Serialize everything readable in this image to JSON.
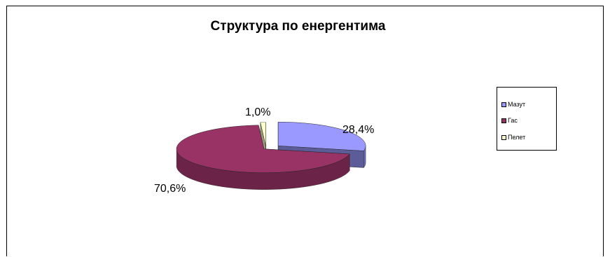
{
  "chart_data": {
    "type": "pie",
    "title": "Структура по енергентима",
    "categories": [
      "Мазут",
      "Гас",
      "Пелет"
    ],
    "values": [
      28.4,
      70.6,
      1.0
    ],
    "data_labels": [
      "28,4%",
      "70,6%",
      "1,0%"
    ],
    "colors": [
      "#9999ff",
      "#993366",
      "#ffffcc"
    ],
    "legend_position": "right",
    "style": "3d-exploded"
  }
}
